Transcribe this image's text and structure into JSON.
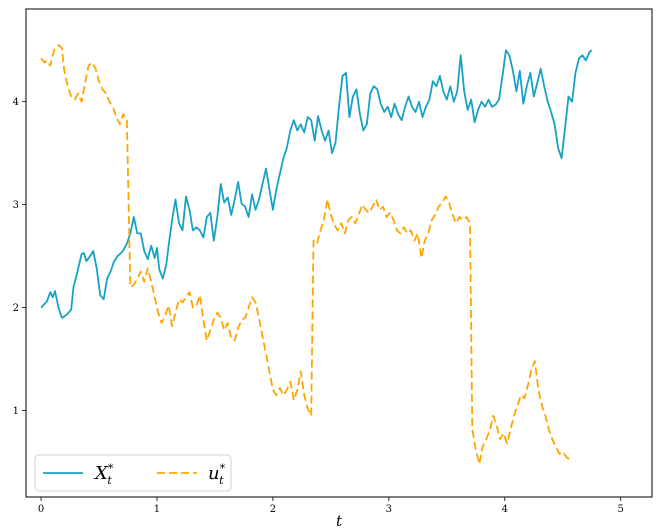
{
  "chart_data": {
    "type": "line",
    "title": "",
    "xlabel": "t",
    "ylabel": "",
    "xlim": [
      -0.13,
      5.27
    ],
    "ylim": [
      0.16,
      4.9
    ],
    "grid": false,
    "legend_position": "lower-left",
    "xticks": [
      0,
      1,
      2,
      3,
      4,
      5
    ],
    "yticks": [
      1,
      2,
      3,
      4
    ],
    "series": [
      {
        "name": "X",
        "sup": "*",
        "sub": "t",
        "color": "#17a2c4",
        "dash": "solid",
        "points": [
          [
            0.0,
            2.0
          ],
          [
            0.05,
            2.06
          ],
          [
            0.08,
            2.15
          ],
          [
            0.1,
            2.1
          ],
          [
            0.12,
            2.16
          ],
          [
            0.15,
            2.0
          ],
          [
            0.18,
            1.9
          ],
          [
            0.22,
            1.93
          ],
          [
            0.26,
            1.98
          ],
          [
            0.28,
            2.2
          ],
          [
            0.31,
            2.33
          ],
          [
            0.35,
            2.52
          ],
          [
            0.37,
            2.53
          ],
          [
            0.39,
            2.45
          ],
          [
            0.43,
            2.51
          ],
          [
            0.45,
            2.55
          ],
          [
            0.48,
            2.38
          ],
          [
            0.51,
            2.12
          ],
          [
            0.54,
            2.08
          ],
          [
            0.57,
            2.28
          ],
          [
            0.6,
            2.35
          ],
          [
            0.63,
            2.45
          ],
          [
            0.66,
            2.5
          ],
          [
            0.7,
            2.54
          ],
          [
            0.74,
            2.62
          ],
          [
            0.77,
            2.72
          ],
          [
            0.8,
            2.88
          ],
          [
            0.83,
            2.72
          ],
          [
            0.86,
            2.72
          ],
          [
            0.89,
            2.55
          ],
          [
            0.92,
            2.47
          ],
          [
            0.95,
            2.6
          ],
          [
            0.98,
            2.48
          ],
          [
            1.0,
            2.58
          ],
          [
            1.02,
            2.37
          ],
          [
            1.05,
            2.28
          ],
          [
            1.08,
            2.42
          ],
          [
            1.1,
            2.6
          ],
          [
            1.13,
            2.85
          ],
          [
            1.16,
            3.05
          ],
          [
            1.19,
            2.82
          ],
          [
            1.22,
            2.75
          ],
          [
            1.25,
            3.08
          ],
          [
            1.28,
            2.95
          ],
          [
            1.31,
            2.75
          ],
          [
            1.34,
            2.78
          ],
          [
            1.37,
            2.75
          ],
          [
            1.4,
            2.68
          ],
          [
            1.43,
            2.88
          ],
          [
            1.46,
            2.92
          ],
          [
            1.49,
            2.65
          ],
          [
            1.52,
            2.88
          ],
          [
            1.55,
            3.2
          ],
          [
            1.58,
            3.02
          ],
          [
            1.61,
            3.07
          ],
          [
            1.64,
            2.9
          ],
          [
            1.67,
            3.05
          ],
          [
            1.7,
            3.22
          ],
          [
            1.73,
            3.01
          ],
          [
            1.76,
            2.98
          ],
          [
            1.79,
            2.88
          ],
          [
            1.82,
            3.1
          ],
          [
            1.85,
            2.95
          ],
          [
            1.88,
            3.05
          ],
          [
            1.91,
            3.2
          ],
          [
            1.94,
            3.35
          ],
          [
            1.97,
            3.15
          ],
          [
            2.0,
            2.95
          ],
          [
            2.03,
            3.15
          ],
          [
            2.06,
            3.3
          ],
          [
            2.09,
            3.45
          ],
          [
            2.12,
            3.55
          ],
          [
            2.15,
            3.72
          ],
          [
            2.18,
            3.82
          ],
          [
            2.21,
            3.72
          ],
          [
            2.24,
            3.78
          ],
          [
            2.27,
            3.7
          ],
          [
            2.3,
            3.85
          ],
          [
            2.33,
            3.82
          ],
          [
            2.36,
            3.62
          ],
          [
            2.39,
            3.86
          ],
          [
            2.42,
            3.72
          ],
          [
            2.45,
            3.62
          ],
          [
            2.48,
            3.72
          ],
          [
            2.51,
            3.5
          ],
          [
            2.54,
            3.6
          ],
          [
            2.57,
            3.95
          ],
          [
            2.6,
            4.25
          ],
          [
            2.63,
            4.28
          ],
          [
            2.66,
            3.85
          ],
          [
            2.69,
            4.05
          ],
          [
            2.72,
            4.12
          ],
          [
            2.75,
            3.88
          ],
          [
            2.78,
            3.72
          ],
          [
            2.81,
            3.78
          ],
          [
            2.84,
            4.08
          ],
          [
            2.87,
            4.15
          ],
          [
            2.9,
            4.12
          ],
          [
            2.93,
            3.98
          ],
          [
            2.96,
            3.9
          ],
          [
            2.99,
            3.95
          ],
          [
            3.02,
            3.85
          ],
          [
            3.05,
            3.98
          ],
          [
            3.08,
            3.88
          ],
          [
            3.11,
            3.82
          ],
          [
            3.14,
            3.95
          ],
          [
            3.17,
            4.05
          ],
          [
            3.2,
            3.95
          ],
          [
            3.23,
            3.9
          ],
          [
            3.26,
            4.0
          ],
          [
            3.29,
            3.85
          ],
          [
            3.32,
            3.95
          ],
          [
            3.35,
            4.02
          ],
          [
            3.38,
            4.2
          ],
          [
            3.41,
            4.15
          ],
          [
            3.44,
            4.25
          ],
          [
            3.47,
            4.1
          ],
          [
            3.5,
            4.02
          ],
          [
            3.53,
            4.15
          ],
          [
            3.56,
            4.0
          ],
          [
            3.59,
            4.1
          ],
          [
            3.62,
            4.45
          ],
          [
            3.65,
            4.1
          ],
          [
            3.68,
            3.92
          ],
          [
            3.71,
            4.02
          ],
          [
            3.74,
            3.8
          ],
          [
            3.77,
            3.92
          ],
          [
            3.8,
            4.0
          ],
          [
            3.83,
            3.95
          ],
          [
            3.86,
            4.02
          ],
          [
            3.89,
            3.95
          ],
          [
            3.92,
            3.97
          ],
          [
            3.95,
            4.02
          ],
          [
            3.98,
            4.25
          ],
          [
            4.01,
            4.5
          ],
          [
            4.04,
            4.45
          ],
          [
            4.07,
            4.3
          ],
          [
            4.1,
            4.1
          ],
          [
            4.13,
            4.3
          ],
          [
            4.16,
            3.98
          ],
          [
            4.19,
            4.15
          ],
          [
            4.22,
            4.28
          ],
          [
            4.25,
            4.05
          ],
          [
            4.28,
            4.18
          ],
          [
            4.31,
            4.32
          ],
          [
            4.34,
            4.15
          ],
          [
            4.37,
            4.0
          ],
          [
            4.4,
            3.9
          ],
          [
            4.43,
            3.78
          ],
          [
            4.46,
            3.55
          ],
          [
            4.49,
            3.45
          ],
          [
            4.52,
            3.75
          ],
          [
            4.55,
            4.05
          ],
          [
            4.58,
            4.0
          ],
          [
            4.61,
            4.28
          ],
          [
            4.64,
            4.42
          ],
          [
            4.67,
            4.45
          ],
          [
            4.7,
            4.4
          ],
          [
            4.73,
            4.48
          ],
          [
            4.75,
            4.5
          ]
        ]
      },
      {
        "name": "u",
        "sup": "*",
        "sub": "t",
        "color": "#ffa500",
        "dash": "8,4",
        "points": [
          [
            0.0,
            4.42
          ],
          [
            0.03,
            4.38
          ],
          [
            0.05,
            4.4
          ],
          [
            0.08,
            4.35
          ],
          [
            0.1,
            4.45
          ],
          [
            0.12,
            4.52
          ],
          [
            0.15,
            4.55
          ],
          [
            0.18,
            4.52
          ],
          [
            0.2,
            4.3
          ],
          [
            0.23,
            4.15
          ],
          [
            0.26,
            4.05
          ],
          [
            0.29,
            4.02
          ],
          [
            0.32,
            4.08
          ],
          [
            0.35,
            4.0
          ],
          [
            0.38,
            4.18
          ],
          [
            0.41,
            4.35
          ],
          [
            0.44,
            4.38
          ],
          [
            0.47,
            4.32
          ],
          [
            0.5,
            4.2
          ],
          [
            0.53,
            4.12
          ],
          [
            0.56,
            4.08
          ],
          [
            0.59,
            4.0
          ],
          [
            0.62,
            3.95
          ],
          [
            0.65,
            3.85
          ],
          [
            0.68,
            3.78
          ],
          [
            0.71,
            3.88
          ],
          [
            0.72,
            3.85
          ],
          [
            0.74,
            3.82
          ],
          [
            0.77,
            2.2
          ],
          [
            0.8,
            2.22
          ],
          [
            0.83,
            2.28
          ],
          [
            0.86,
            2.35
          ],
          [
            0.89,
            2.25
          ],
          [
            0.92,
            2.38
          ],
          [
            0.95,
            2.25
          ],
          [
            0.98,
            2.1
          ],
          [
            1.01,
            1.95
          ],
          [
            1.04,
            1.85
          ],
          [
            1.07,
            1.92
          ],
          [
            1.1,
            2.02
          ],
          [
            1.13,
            1.82
          ],
          [
            1.16,
            1.95
          ],
          [
            1.19,
            2.08
          ],
          [
            1.22,
            2.05
          ],
          [
            1.25,
            2.1
          ],
          [
            1.28,
            2.15
          ],
          [
            1.31,
            2.0
          ],
          [
            1.34,
            2.02
          ],
          [
            1.37,
            2.12
          ],
          [
            1.4,
            1.88
          ],
          [
            1.43,
            1.68
          ],
          [
            1.46,
            1.78
          ],
          [
            1.49,
            1.88
          ],
          [
            1.52,
            1.95
          ],
          [
            1.55,
            1.9
          ],
          [
            1.58,
            1.78
          ],
          [
            1.61,
            1.85
          ],
          [
            1.64,
            1.7
          ],
          [
            1.67,
            1.68
          ],
          [
            1.7,
            1.8
          ],
          [
            1.73,
            1.88
          ],
          [
            1.76,
            1.9
          ],
          [
            1.79,
            2.0
          ],
          [
            1.82,
            2.1
          ],
          [
            1.85,
            2.05
          ],
          [
            1.88,
            1.9
          ],
          [
            1.91,
            1.72
          ],
          [
            1.94,
            1.55
          ],
          [
            1.97,
            1.38
          ],
          [
            2.0,
            1.2
          ],
          [
            2.03,
            1.15
          ],
          [
            2.06,
            1.22
          ],
          [
            2.09,
            1.15
          ],
          [
            2.12,
            1.2
          ],
          [
            2.15,
            1.28
          ],
          [
            2.18,
            1.1
          ],
          [
            2.21,
            1.2
          ],
          [
            2.24,
            1.38
          ],
          [
            2.27,
            1.15
          ],
          [
            2.3,
            1.02
          ],
          [
            2.33,
            0.95
          ],
          [
            2.35,
            2.65
          ],
          [
            2.38,
            2.62
          ],
          [
            2.41,
            2.75
          ],
          [
            2.44,
            2.85
          ],
          [
            2.47,
            3.05
          ],
          [
            2.5,
            2.9
          ],
          [
            2.53,
            2.8
          ],
          [
            2.56,
            2.75
          ],
          [
            2.59,
            2.82
          ],
          [
            2.62,
            2.72
          ],
          [
            2.65,
            2.85
          ],
          [
            2.68,
            2.88
          ],
          [
            2.71,
            2.82
          ],
          [
            2.74,
            2.9
          ],
          [
            2.77,
            3.0
          ],
          [
            2.8,
            2.95
          ],
          [
            2.83,
            2.92
          ],
          [
            2.86,
            2.98
          ],
          [
            2.89,
            3.05
          ],
          [
            2.92,
            2.95
          ],
          [
            2.95,
            2.98
          ],
          [
            2.98,
            2.88
          ],
          [
            3.01,
            2.92
          ],
          [
            3.04,
            2.85
          ],
          [
            3.07,
            2.75
          ],
          [
            3.1,
            2.72
          ],
          [
            3.13,
            2.78
          ],
          [
            3.16,
            2.72
          ],
          [
            3.19,
            2.75
          ],
          [
            3.22,
            2.65
          ],
          [
            3.25,
            2.72
          ],
          [
            3.28,
            2.48
          ],
          [
            3.31,
            2.65
          ],
          [
            3.34,
            2.72
          ],
          [
            3.37,
            2.85
          ],
          [
            3.4,
            2.9
          ],
          [
            3.43,
            2.98
          ],
          [
            3.46,
            3.02
          ],
          [
            3.49,
            3.08
          ],
          [
            3.52,
            3.02
          ],
          [
            3.55,
            2.9
          ],
          [
            3.58,
            2.82
          ],
          [
            3.61,
            2.88
          ],
          [
            3.64,
            2.85
          ],
          [
            3.67,
            2.88
          ],
          [
            3.7,
            2.82
          ],
          [
            3.72,
            0.82
          ],
          [
            3.75,
            0.62
          ],
          [
            3.78,
            0.48
          ],
          [
            3.81,
            0.65
          ],
          [
            3.84,
            0.72
          ],
          [
            3.87,
            0.8
          ],
          [
            3.9,
            0.95
          ],
          [
            3.93,
            0.85
          ],
          [
            3.96,
            0.72
          ],
          [
            3.99,
            0.78
          ],
          [
            4.02,
            0.68
          ],
          [
            4.05,
            0.82
          ],
          [
            4.08,
            0.95
          ],
          [
            4.11,
            1.05
          ],
          [
            4.14,
            1.15
          ],
          [
            4.17,
            1.12
          ],
          [
            4.2,
            1.25
          ],
          [
            4.23,
            1.4
          ],
          [
            4.26,
            1.48
          ],
          [
            4.29,
            1.2
          ],
          [
            4.32,
            1.05
          ],
          [
            4.35,
            0.95
          ],
          [
            4.38,
            0.82
          ],
          [
            4.41,
            0.72
          ],
          [
            4.44,
            0.65
          ],
          [
            4.47,
            0.58
          ],
          [
            4.5,
            0.6
          ],
          [
            4.53,
            0.55
          ],
          [
            4.56,
            0.52
          ]
        ]
      }
    ]
  }
}
